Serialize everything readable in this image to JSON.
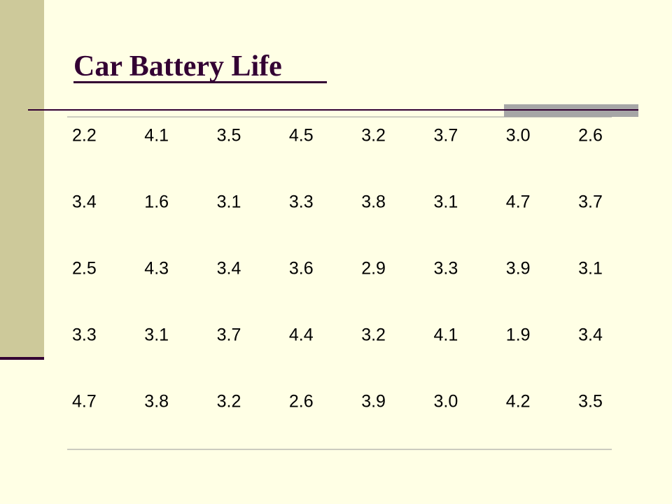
{
  "title": "Car Battery Life",
  "table": {
    "rows": [
      [
        "2.2",
        "4.1",
        "3.5",
        "4.5",
        "3.2",
        "3.7",
        "3.0",
        "2.6"
      ],
      [
        "3.4",
        "1.6",
        "3.1",
        "3.3",
        "3.8",
        "3.1",
        "4.7",
        "3.7"
      ],
      [
        "2.5",
        "4.3",
        "3.4",
        "3.6",
        "2.9",
        "3.3",
        "3.9",
        "3.1"
      ],
      [
        "3.3",
        "3.1",
        "3.7",
        "4.4",
        "3.2",
        "4.1",
        "1.9",
        "3.4"
      ],
      [
        "4.7",
        "3.8",
        "3.2",
        "2.6",
        "3.9",
        "3.0",
        "4.2",
        "3.5"
      ]
    ]
  }
}
